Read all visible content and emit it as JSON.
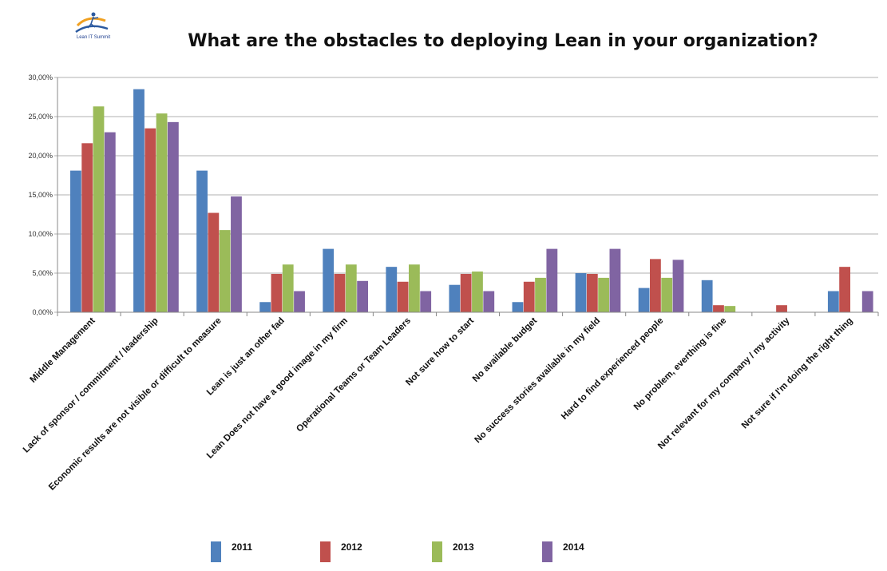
{
  "logo": {
    "text": "Lean IT Summit"
  },
  "chart_data": {
    "type": "bar",
    "title": "What are the obstacles to deploying Lean in your organization?",
    "xlabel": "",
    "ylabel": "",
    "ylim": [
      0,
      30
    ],
    "yticks": [
      "0,00%",
      "5,00%",
      "10,00%",
      "15,00%",
      "20,00%",
      "25,00%",
      "30,00%"
    ],
    "grid": true,
    "legend": "bottom",
    "categories": [
      "Middle Management",
      "Lack of sponsor / commitment / leadership",
      "Economic results are not visible or difficult to measure",
      "Lean is just an other fad",
      "Lean Does not have a good image in my firm",
      "Operational Teams or Team Leaders",
      "Not sure how to start",
      "No available budget",
      "No success stories available in my field",
      "Hard to find experienced people",
      "No problem, everthing is fine",
      "Not relevant for my company / my activity",
      "Not sure if I'm doing the right thing"
    ],
    "series": [
      {
        "name": "2011",
        "color": "#4f81bd",
        "values": [
          18.1,
          28.5,
          18.1,
          1.3,
          8.1,
          5.8,
          3.5,
          1.3,
          5.0,
          3.1,
          4.1,
          0.0,
          2.7
        ]
      },
      {
        "name": "2012",
        "color": "#c0504d",
        "values": [
          21.6,
          23.5,
          12.7,
          4.9,
          4.9,
          3.9,
          4.9,
          3.9,
          4.9,
          6.8,
          0.9,
          0.9,
          5.8
        ]
      },
      {
        "name": "2013",
        "color": "#9bbb59",
        "values": [
          26.3,
          25.4,
          10.5,
          6.1,
          6.1,
          6.1,
          5.2,
          4.4,
          4.4,
          4.4,
          0.8,
          0.0,
          0.0
        ]
      },
      {
        "name": "2014",
        "color": "#8064a2",
        "values": [
          23.0,
          24.3,
          14.8,
          2.7,
          4.0,
          2.7,
          2.7,
          8.1,
          8.1,
          6.7,
          0.0,
          0.0,
          2.7
        ]
      }
    ]
  }
}
